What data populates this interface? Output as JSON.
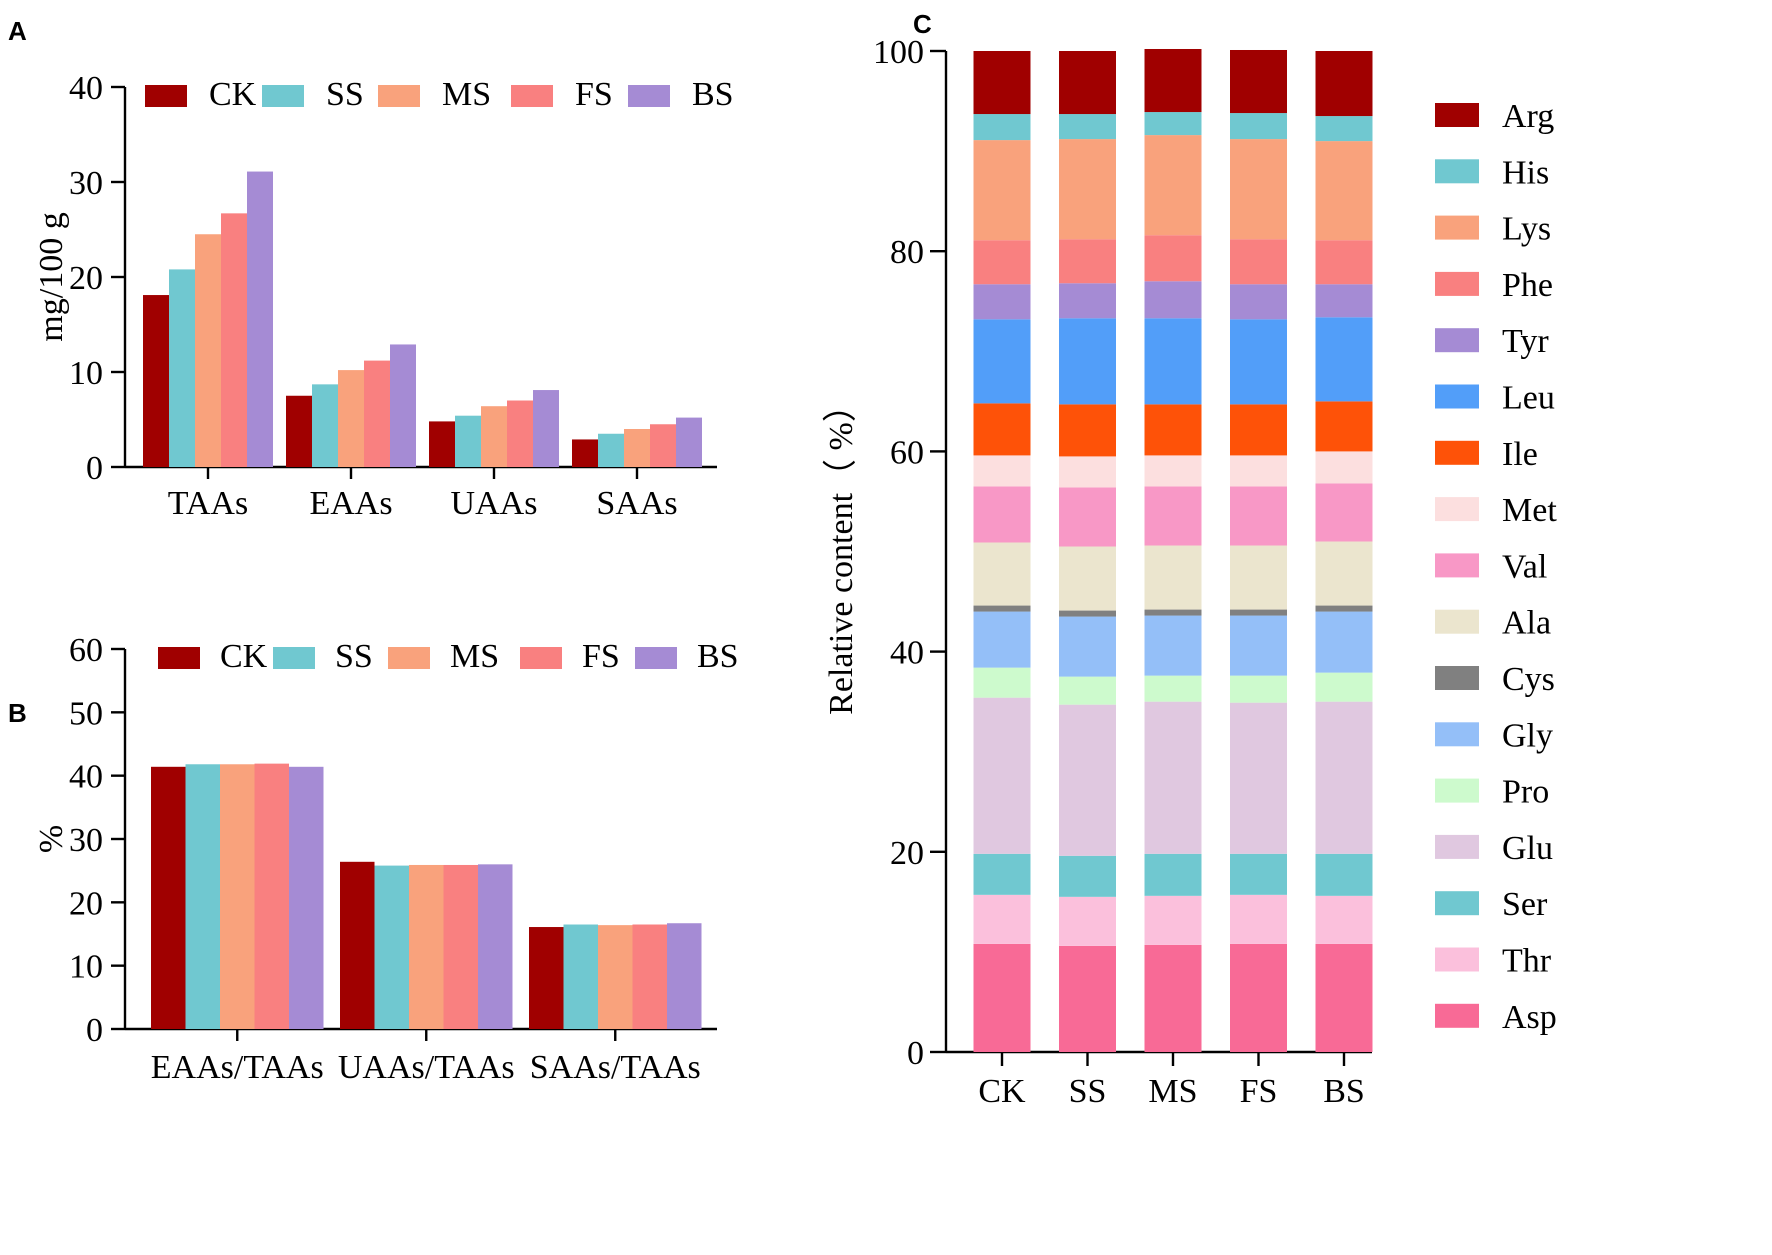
{
  "panels": {
    "a": "A",
    "b": "B",
    "c": "C"
  },
  "colors": {
    "CK": "#a00000",
    "SS": "#70c8d0",
    "MS": "#f9a27c",
    "FS": "#f98080",
    "BS": "#a58bd4"
  },
  "chart_data": [
    {
      "panel": "A",
      "type": "bar",
      "title": "",
      "xlabel": "",
      "ylabel": "mg/100 g",
      "ylim": [
        0,
        40
      ],
      "yticks": [
        0,
        10,
        20,
        30,
        40
      ],
      "categories": [
        "TAAs",
        "EAAs",
        "UAAs",
        "SAAs"
      ],
      "legend": "top",
      "series": [
        {
          "name": "CK",
          "values": [
            18.1,
            7.5,
            4.8,
            2.9
          ]
        },
        {
          "name": "SS",
          "values": [
            20.8,
            8.7,
            5.4,
            3.5
          ]
        },
        {
          "name": "MS",
          "values": [
            24.5,
            10.2,
            6.4,
            4.0
          ]
        },
        {
          "name": "FS",
          "values": [
            26.7,
            11.2,
            7.0,
            4.5
          ]
        },
        {
          "name": "BS",
          "values": [
            31.1,
            12.9,
            8.1,
            5.2
          ]
        }
      ]
    },
    {
      "panel": "B",
      "type": "bar",
      "title": "",
      "xlabel": "",
      "ylabel": "%",
      "ylim": [
        0,
        60
      ],
      "yticks": [
        0,
        10,
        20,
        30,
        40,
        50,
        60
      ],
      "categories": [
        "EAAs/TAAs",
        "UAAs/TAAs",
        "SAAs/TAAs"
      ],
      "legend": "top",
      "series": [
        {
          "name": "CK",
          "values": [
            41.4,
            26.4,
            16.1
          ]
        },
        {
          "name": "SS",
          "values": [
            41.8,
            25.8,
            16.5
          ]
        },
        {
          "name": "MS",
          "values": [
            41.8,
            25.9,
            16.4
          ]
        },
        {
          "name": "FS",
          "values": [
            41.9,
            25.9,
            16.5
          ]
        },
        {
          "name": "BS",
          "values": [
            41.4,
            26.0,
            16.7
          ]
        }
      ]
    },
    {
      "panel": "C",
      "type": "bar",
      "stacked": true,
      "title": "",
      "xlabel": "",
      "ylabel": "Relative content（ %）",
      "ylim": [
        0,
        100
      ],
      "yticks": [
        0,
        20,
        40,
        60,
        80,
        100
      ],
      "categories": [
        "CK",
        "SS",
        "MS",
        "FS",
        "BS"
      ],
      "legend": "right",
      "series": [
        {
          "name": "Asp",
          "color": "#f86a96",
          "values": [
            10.8,
            10.6,
            10.7,
            10.8,
            10.8
          ]
        },
        {
          "name": "Thr",
          "color": "#fbc0dc",
          "values": [
            4.9,
            4.9,
            4.9,
            4.9,
            4.8
          ]
        },
        {
          "name": "Ser",
          "color": "#70c8d0",
          "values": [
            4.1,
            4.1,
            4.2,
            4.1,
            4.2
          ]
        },
        {
          "name": "Glu",
          "color": "#e0c8e0",
          "values": [
            15.6,
            15.1,
            15.2,
            15.1,
            15.2
          ]
        },
        {
          "name": "Pro",
          "color": "#cdfacd",
          "values": [
            3.0,
            2.8,
            2.6,
            2.7,
            2.9
          ]
        },
        {
          "name": "Gly",
          "color": "#94bff8",
          "values": [
            5.6,
            6.0,
            6.0,
            6.0,
            6.1
          ]
        },
        {
          "name": "Cys",
          "color": "#808080",
          "values": [
            0.6,
            0.6,
            0.6,
            0.6,
            0.6
          ]
        },
        {
          "name": "Ala",
          "color": "#ebe5ce",
          "values": [
            6.3,
            6.4,
            6.4,
            6.4,
            6.4
          ]
        },
        {
          "name": "Val",
          "color": "#f898c6",
          "values": [
            5.6,
            5.9,
            5.9,
            5.9,
            5.8
          ]
        },
        {
          "name": "Met",
          "color": "#fcdfdf",
          "values": [
            3.1,
            3.1,
            3.1,
            3.1,
            3.2
          ]
        },
        {
          "name": "Ile",
          "color": "#fe5208",
          "values": [
            5.2,
            5.2,
            5.1,
            5.1,
            5.0
          ]
        },
        {
          "name": "Leu",
          "color": "#529ef9",
          "values": [
            8.4,
            8.6,
            8.6,
            8.5,
            8.4
          ]
        },
        {
          "name": "Tyr",
          "color": "#a58bd4",
          "values": [
            3.5,
            3.5,
            3.7,
            3.5,
            3.3
          ]
        },
        {
          "name": "Phe",
          "color": "#f98080",
          "values": [
            4.4,
            4.4,
            4.6,
            4.5,
            4.4
          ]
        },
        {
          "name": "Lys",
          "color": "#f9a27c",
          "values": [
            10.0,
            10.0,
            10.0,
            10.0,
            9.9
          ]
        },
        {
          "name": "His",
          "color": "#70c8d0",
          "values": [
            2.6,
            2.5,
            2.3,
            2.6,
            2.5
          ]
        },
        {
          "name": "Arg",
          "color": "#a00000",
          "values": [
            6.3,
            6.3,
            6.3,
            6.3,
            6.5
          ]
        }
      ]
    }
  ]
}
